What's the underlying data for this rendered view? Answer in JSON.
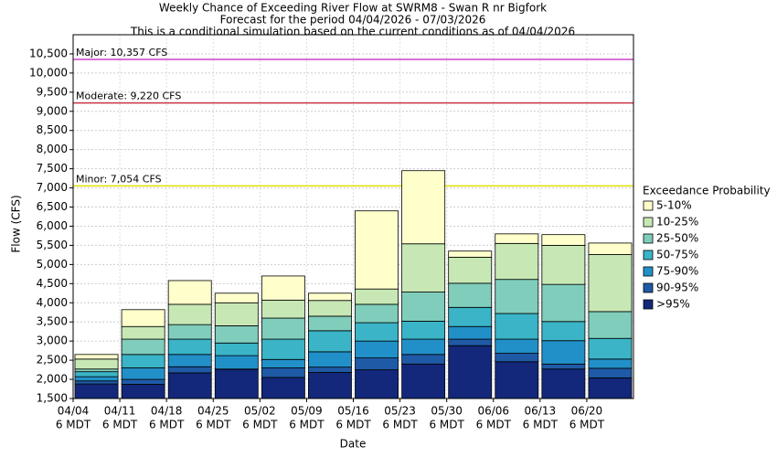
{
  "chart_data": {
    "type": "bar",
    "title": "Weekly Chance of Exceeding River Flow at SWRM8 - Swan R nr Bigfork",
    "subtitle": "Forecast for the period 04/04/2026 - 07/03/2026",
    "note": "This is a conditional simulation based on the current conditions as of 04/04/2026",
    "x_label": "Date",
    "y_label": "Flow (CFS)",
    "legend_title": "Exceedance Probability",
    "categories": [
      "04/04",
      "04/11",
      "04/18",
      "04/25",
      "05/02",
      "05/09",
      "05/16",
      "05/23",
      "05/30",
      "06/06",
      "06/13",
      "06/20"
    ],
    "category_times": [
      "6 MDT",
      "6 MDT",
      "6 MDT",
      "6 MDT",
      "6 MDT",
      "6 MDT",
      "6 MDT",
      "6 MDT",
      "6 MDT",
      "6 MDT",
      "6 MDT",
      "6 MDT"
    ],
    "series": [
      {
        "name": ">95%",
        "color": "#13287a",
        "values": [
          1880,
          1870,
          2170,
          2260,
          2050,
          2180,
          2250,
          2400,
          2880,
          2460,
          2270,
          2040
        ]
      },
      {
        "name": "90-95%",
        "color": "#1f5aa6",
        "values": [
          1960,
          2000,
          2330,
          2270,
          2300,
          2320,
          2560,
          2650,
          3050,
          2680,
          2400,
          2290
        ]
      },
      {
        "name": "75-90%",
        "color": "#2290c8",
        "values": [
          2070,
          2300,
          2650,
          2620,
          2520,
          2720,
          3000,
          3050,
          3380,
          3050,
          3010,
          2530
        ]
      },
      {
        "name": "50-75%",
        "color": "#3ab4c6",
        "values": [
          2200,
          2650,
          3050,
          2950,
          3050,
          3270,
          3480,
          3520,
          3880,
          3720,
          3510,
          3070
        ]
      },
      {
        "name": "25-50%",
        "color": "#80cdbb",
        "values": [
          2270,
          3050,
          3430,
          3400,
          3600,
          3650,
          3960,
          4280,
          4510,
          4610,
          4480,
          3770
        ]
      },
      {
        "name": "10-25%",
        "color": "#c7e8b4",
        "values": [
          2530,
          3380,
          3960,
          4000,
          4070,
          4060,
          4360,
          5540,
          5190,
          5550,
          5500,
          5260
        ]
      },
      {
        "name": "5-10%",
        "color": "#ffffcc",
        "values": [
          2650,
          3820,
          4580,
          4250,
          4700,
          4250,
          6400,
          7450,
          5350,
          5800,
          5780,
          5560
        ]
      }
    ],
    "thresholds": [
      {
        "label": "Major: 10,357 CFS",
        "value": 10357,
        "color": "#cc44cc"
      },
      {
        "label": "Moderate: 9,220 CFS",
        "value": 9220,
        "color": "#cc3344"
      },
      {
        "label": "Minor: 7,054 CFS",
        "value": 7054,
        "color": "#e0e000"
      }
    ],
    "ylim": [
      1500,
      11000
    ],
    "yticks": [
      {
        "value": 1500,
        "label": "1,500"
      },
      {
        "value": 2000,
        "label": "2,000"
      },
      {
        "value": 2500,
        "label": "2,500"
      },
      {
        "value": 3000,
        "label": "3,000"
      },
      {
        "value": 3500,
        "label": "3,500"
      },
      {
        "value": 4000,
        "label": "4,000"
      },
      {
        "value": 4500,
        "label": "4,500"
      },
      {
        "value": 5000,
        "label": "5,000"
      },
      {
        "value": 5500,
        "label": "5,500"
      },
      {
        "value": 6000,
        "label": "6,000"
      },
      {
        "value": 6500,
        "label": "6,500"
      },
      {
        "value": 7000,
        "label": "7,000"
      },
      {
        "value": 7500,
        "label": "7,500"
      },
      {
        "value": 8000,
        "label": "8,000"
      },
      {
        "value": 8500,
        "label": "8,500"
      },
      {
        "value": 9000,
        "label": "9,000"
      },
      {
        "value": 9500,
        "label": "9,500"
      },
      {
        "value": 10000,
        "label": "10,000"
      },
      {
        "value": 10500,
        "label": "10,500"
      }
    ],
    "grid": true
  }
}
